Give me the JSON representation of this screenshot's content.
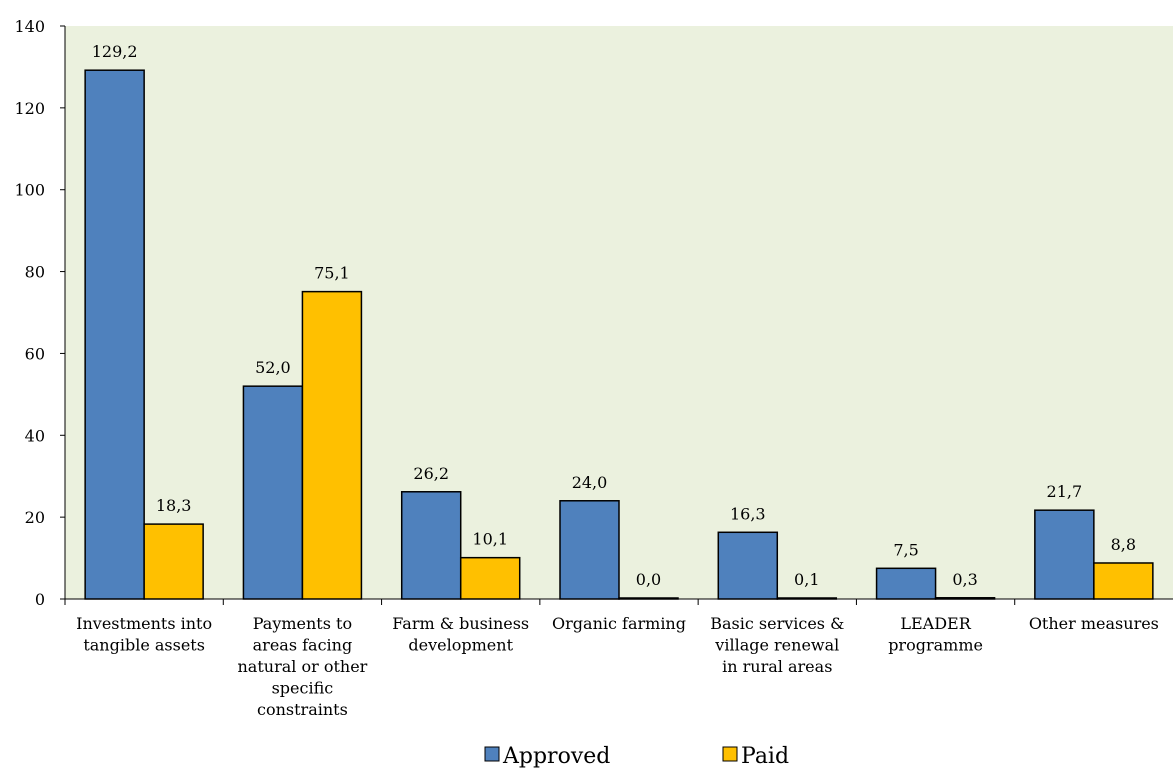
{
  "chart_data": {
    "type": "bar",
    "title": "",
    "xlabel": "",
    "ylabel": "",
    "ylim": [
      0,
      140
    ],
    "yticks": [
      0,
      20,
      40,
      60,
      80,
      100,
      120,
      140
    ],
    "grid": false,
    "legend_position": "bottom",
    "plot_background": "#ebf1de",
    "categories": [
      [
        "Investments into",
        "tangible assets"
      ],
      [
        "Payments to",
        "areas facing",
        "natural or other",
        "specific",
        "constraints"
      ],
      [
        "Farm & business",
        "development"
      ],
      [
        "Organic farming"
      ],
      [
        "Basic services &",
        "village renewal",
        "in rural areas"
      ],
      [
        "LEADER",
        "programme"
      ],
      [
        "Other measures"
      ]
    ],
    "series": [
      {
        "name": "Approved",
        "color": "#4f81bd",
        "values": [
          129.2,
          52.0,
          26.2,
          24.0,
          16.3,
          7.5,
          21.7
        ],
        "labels": [
          "129,2",
          "52,0",
          "26,2",
          "24,0",
          "16,3",
          "7,5",
          "21,7"
        ]
      },
      {
        "name": "Paid",
        "color": "#ffc000",
        "values": [
          18.3,
          75.1,
          10.1,
          0.0,
          0.1,
          0.3,
          8.8
        ],
        "labels": [
          "18,3",
          "75,1",
          "10,1",
          "0,0",
          "0,1",
          "0,3",
          "8,8"
        ]
      }
    ]
  }
}
